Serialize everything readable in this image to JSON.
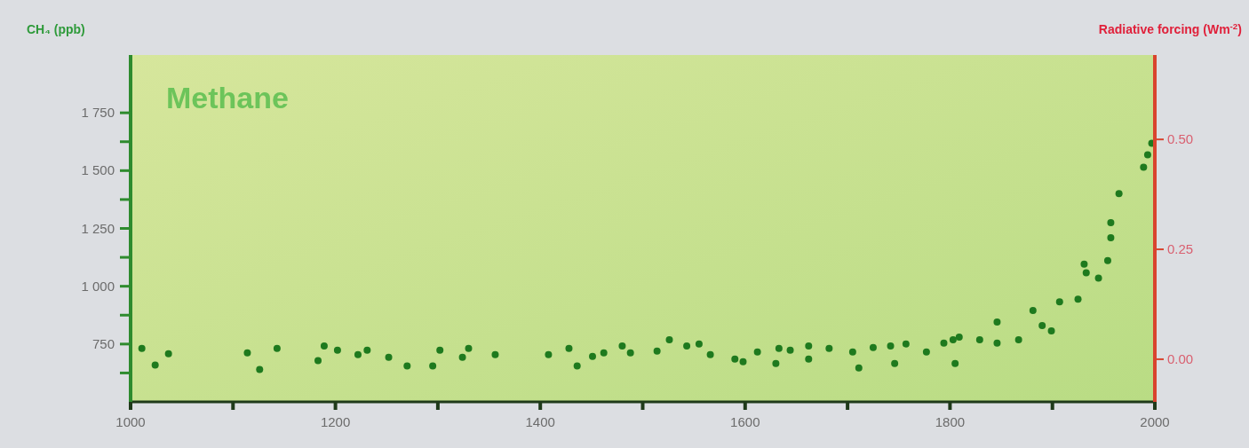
{
  "chart_data": {
    "type": "scatter",
    "title": "Methane",
    "ylabel": "CH₄ (ppb)",
    "y2label": "Radiative forcing (Wm$^{-2}$)",
    "xlim": [
      1000,
      2000
    ],
    "xticks": [
      1000,
      {
        "value": 1100,
        "label": null
      },
      1200,
      {
        "value": 1300,
        "label": null
      },
      1400,
      {
        "value": 1500,
        "label": null
      },
      1600,
      {
        "value": 1700,
        "label": null
      },
      1800,
      {
        "value": 1900,
        "label": null
      },
      2000
    ],
    "ylim": [
      500,
      2000
    ],
    "yticks": [
      {
        "value": 625,
        "label": null
      },
      750,
      {
        "value": 875,
        "label": null
      },
      {
        "value": 1000,
        "label": "1 000"
      },
      {
        "value": 1125,
        "label": null
      },
      {
        "value": 1250,
        "label": "1 250"
      },
      {
        "value": 1375,
        "label": null
      },
      {
        "value": 1500,
        "label": "1 500"
      },
      {
        "value": 1625,
        "label": null
      },
      {
        "value": 1750,
        "label": "1 750"
      }
    ],
    "y2lim": [
      -0.097,
      0.692
    ],
    "y2ticks": [
      {
        "value": 0,
        "label": "0.00"
      },
      {
        "value": 0.25,
        "label": "0.25"
      },
      {
        "value": 0.5,
        "label": "0.50"
      }
    ],
    "marker": "circle",
    "series": [
      {
        "color": "#1e7a1e",
        "x": [
          1011,
          1024,
          1037,
          1114,
          1126,
          1143,
          1183,
          1189,
          1202,
          1222,
          1231,
          1252,
          1270,
          1295,
          1302,
          1324,
          1330,
          1356,
          1408,
          1428,
          1436,
          1451,
          1462,
          1480,
          1488,
          1514,
          1526,
          1543,
          1555,
          1566,
          1590,
          1598,
          1612,
          1630,
          1633,
          1644,
          1662,
          1662,
          1682,
          1705,
          1711,
          1725,
          1742,
          1746,
          1757,
          1777,
          1794,
          1803,
          1805,
          1809,
          1829,
          1846,
          1846,
          1867,
          1881,
          1890,
          1899,
          1907,
          1925,
          1931,
          1933,
          1945,
          1954,
          1957,
          1957,
          1965,
          1989,
          1993,
          1997
        ],
        "values": [
          731,
          659,
          708,
          712,
          640,
          731,
          678,
          742,
          723,
          704,
          723,
          693,
          655,
          655,
          723,
          693,
          731,
          704,
          704,
          731,
          655,
          697,
          712,
          742,
          712,
          720,
          769,
          742,
          750,
          704,
          685,
          674,
          716,
          666,
          731,
          723,
          742,
          685,
          731,
          716,
          647,
          735,
          742,
          666,
          750,
          716,
          754,
          769,
          666,
          780,
          769,
          845,
          754,
          769,
          895,
          830,
          807,
          933,
          944,
          1096,
          1058,
          1035,
          1111,
          1210,
          1275,
          1401,
          1515,
          1568,
          1618
        ]
      }
    ]
  }
}
